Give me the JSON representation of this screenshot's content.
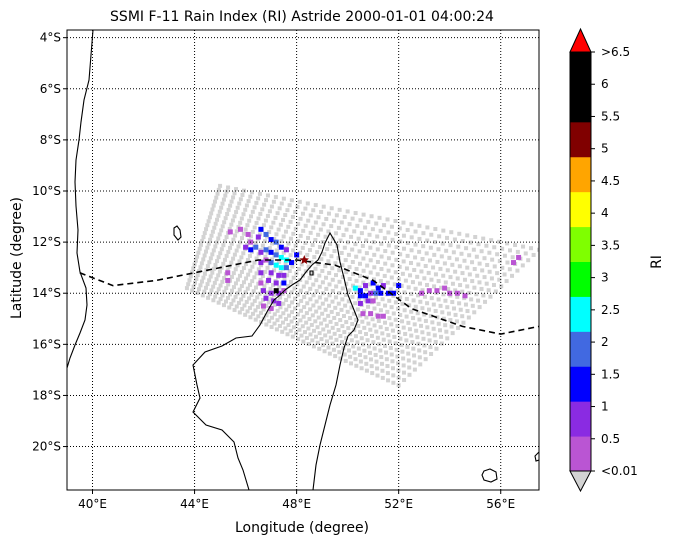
{
  "chart_data": {
    "type": "map",
    "title": "SSMI F-11 Rain Index (RI) Astride 2000-01-01 04:00:24",
    "xlabel": "Longitude (degree)",
    "ylabel": "Latitude (degree)",
    "xlim": [
      39.0,
      57.5
    ],
    "ylim": [
      -21.7,
      -3.7
    ],
    "grid": true,
    "x_ticks": [
      {
        "value": 40,
        "label": "40°E"
      },
      {
        "value": 44,
        "label": "44°E"
      },
      {
        "value": 48,
        "label": "48°E"
      },
      {
        "value": 52,
        "label": "52°E"
      },
      {
        "value": 56,
        "label": "56°E"
      }
    ],
    "y_ticks": [
      {
        "value": -4,
        "label": "4°S"
      },
      {
        "value": -6,
        "label": "6°S"
      },
      {
        "value": -8,
        "label": "8°S"
      },
      {
        "value": -10,
        "label": "10°S"
      },
      {
        "value": -12,
        "label": "12°S"
      },
      {
        "value": -14,
        "label": "14°S"
      },
      {
        "value": -16,
        "label": "16°S"
      },
      {
        "value": -18,
        "label": "18°S"
      },
      {
        "value": -20,
        "label": "20°S"
      }
    ],
    "colorbar": {
      "label": "RI",
      "tick_labels": [
        "<0.01",
        "0.5",
        "1",
        "1.5",
        "2",
        "2.5",
        "3",
        "3.5",
        "4",
        "4.5",
        "5",
        "5.5",
        "6",
        ">6.5"
      ],
      "colors": [
        "#ba55d3",
        "#8a2be2",
        "#0000ff",
        "#4169e1",
        "#00ffff",
        "#00ff00",
        "#7fff00",
        "#ffff00",
        "#ffa500",
        "#800000",
        "#000000",
        "#000000"
      ],
      "under_color": "#d3d3d3",
      "over_color": "#ff0000"
    },
    "swath": {
      "no_rain_color": "#d3d3d3",
      "corners": {
        "northwest": [
          45.0,
          -9.8
        ],
        "southwest": [
          43.7,
          -13.8
        ],
        "southeast": [
          52.0,
          -17.6
        ],
        "northeast": [
          57.5,
          -12.3
        ]
      }
    },
    "storm_track": {
      "style": "dashed",
      "points": [
        [
          39.5,
          -13.2
        ],
        [
          40.8,
          -13.7
        ],
        [
          42.5,
          -13.5
        ],
        [
          44.5,
          -13.1
        ],
        [
          46.5,
          -12.7
        ],
        [
          48.0,
          -12.7
        ],
        [
          49.5,
          -12.9
        ],
        [
          51.0,
          -13.5
        ],
        [
          52.5,
          -14.6
        ],
        [
          54.5,
          -15.3
        ],
        [
          56.0,
          -15.6
        ],
        [
          57.5,
          -15.3
        ]
      ]
    },
    "storm_center": {
      "lon": 48.3,
      "lat": -12.7,
      "color": "#8b0000"
    },
    "rain_pixels": [
      [
        45.4,
        -11.6,
        0
      ],
      [
        45.8,
        -11.5,
        0
      ],
      [
        46.1,
        -11.7,
        0
      ],
      [
        46.2,
        -12.0,
        0
      ],
      [
        46.0,
        -12.2,
        1
      ],
      [
        46.2,
        -12.3,
        2
      ],
      [
        46.4,
        -12.2,
        3
      ],
      [
        46.5,
        -11.8,
        1
      ],
      [
        46.6,
        -11.5,
        2
      ],
      [
        46.8,
        -11.7,
        3
      ],
      [
        47.0,
        -11.9,
        2
      ],
      [
        47.2,
        -12.0,
        3
      ],
      [
        47.4,
        -12.2,
        2
      ],
      [
        47.6,
        -12.3,
        1
      ],
      [
        46.6,
        -12.4,
        1
      ],
      [
        46.8,
        -12.3,
        3
      ],
      [
        47.0,
        -12.4,
        2
      ],
      [
        47.2,
        -12.5,
        3
      ],
      [
        47.4,
        -12.6,
        4
      ],
      [
        47.6,
        -12.7,
        4
      ],
      [
        47.8,
        -12.8,
        2
      ],
      [
        46.6,
        -12.8,
        1
      ],
      [
        46.8,
        -12.7,
        0
      ],
      [
        47.0,
        -12.8,
        3
      ],
      [
        47.2,
        -12.9,
        4
      ],
      [
        47.4,
        -13.0,
        4
      ],
      [
        47.6,
        -13.0,
        3
      ],
      [
        47.0,
        -13.2,
        1
      ],
      [
        47.3,
        -13.3,
        1
      ],
      [
        47.5,
        -13.3,
        1
      ],
      [
        46.6,
        -13.2,
        1
      ],
      [
        46.6,
        -13.6,
        0
      ],
      [
        46.9,
        -13.5,
        1
      ],
      [
        47.2,
        -13.6,
        1
      ],
      [
        47.5,
        -13.6,
        2
      ],
      [
        46.7,
        -13.9,
        1
      ],
      [
        47.0,
        -14.0,
        1
      ],
      [
        47.3,
        -14.0,
        1
      ],
      [
        47.5,
        -13.9,
        0
      ],
      [
        46.8,
        -14.2,
        1
      ],
      [
        47.1,
        -14.3,
        1
      ],
      [
        47.3,
        -14.4,
        1
      ],
      [
        46.7,
        -14.5,
        0
      ],
      [
        47.0,
        -14.6,
        0
      ],
      [
        45.3,
        -13.2,
        0
      ],
      [
        45.3,
        -13.5,
        0
      ],
      [
        48.0,
        -12.5,
        2
      ],
      [
        47.2,
        -13.9,
        10
      ],
      [
        50.3,
        -13.8,
        4
      ],
      [
        50.5,
        -13.9,
        2
      ],
      [
        50.7,
        -13.7,
        1
      ],
      [
        51.0,
        -13.6,
        2
      ],
      [
        51.2,
        -13.8,
        2
      ],
      [
        51.4,
        -13.7,
        1
      ],
      [
        50.5,
        -14.1,
        2
      ],
      [
        50.7,
        -14.1,
        2
      ],
      [
        50.9,
        -14.0,
        1
      ],
      [
        51.1,
        -14.0,
        3
      ],
      [
        51.3,
        -14.0,
        2
      ],
      [
        51.6,
        -14.0,
        2
      ],
      [
        51.8,
        -14.0,
        2
      ],
      [
        52.0,
        -13.7,
        2
      ],
      [
        50.5,
        -14.4,
        1
      ],
      [
        50.8,
        -14.3,
        1
      ],
      [
        51.0,
        -14.3,
        0
      ],
      [
        50.6,
        -14.8,
        0
      ],
      [
        50.9,
        -14.8,
        0
      ],
      [
        51.2,
        -14.9,
        0
      ],
      [
        51.4,
        -14.9,
        0
      ],
      [
        52.9,
        -14.0,
        0
      ],
      [
        53.2,
        -13.9,
        0
      ],
      [
        53.5,
        -13.9,
        0
      ],
      [
        53.8,
        -13.8,
        0
      ],
      [
        54.0,
        -14.0,
        0
      ],
      [
        54.3,
        -14.0,
        0
      ],
      [
        54.6,
        -14.1,
        0
      ],
      [
        56.5,
        -12.8,
        0
      ],
      [
        56.7,
        -12.6,
        0
      ]
    ]
  }
}
